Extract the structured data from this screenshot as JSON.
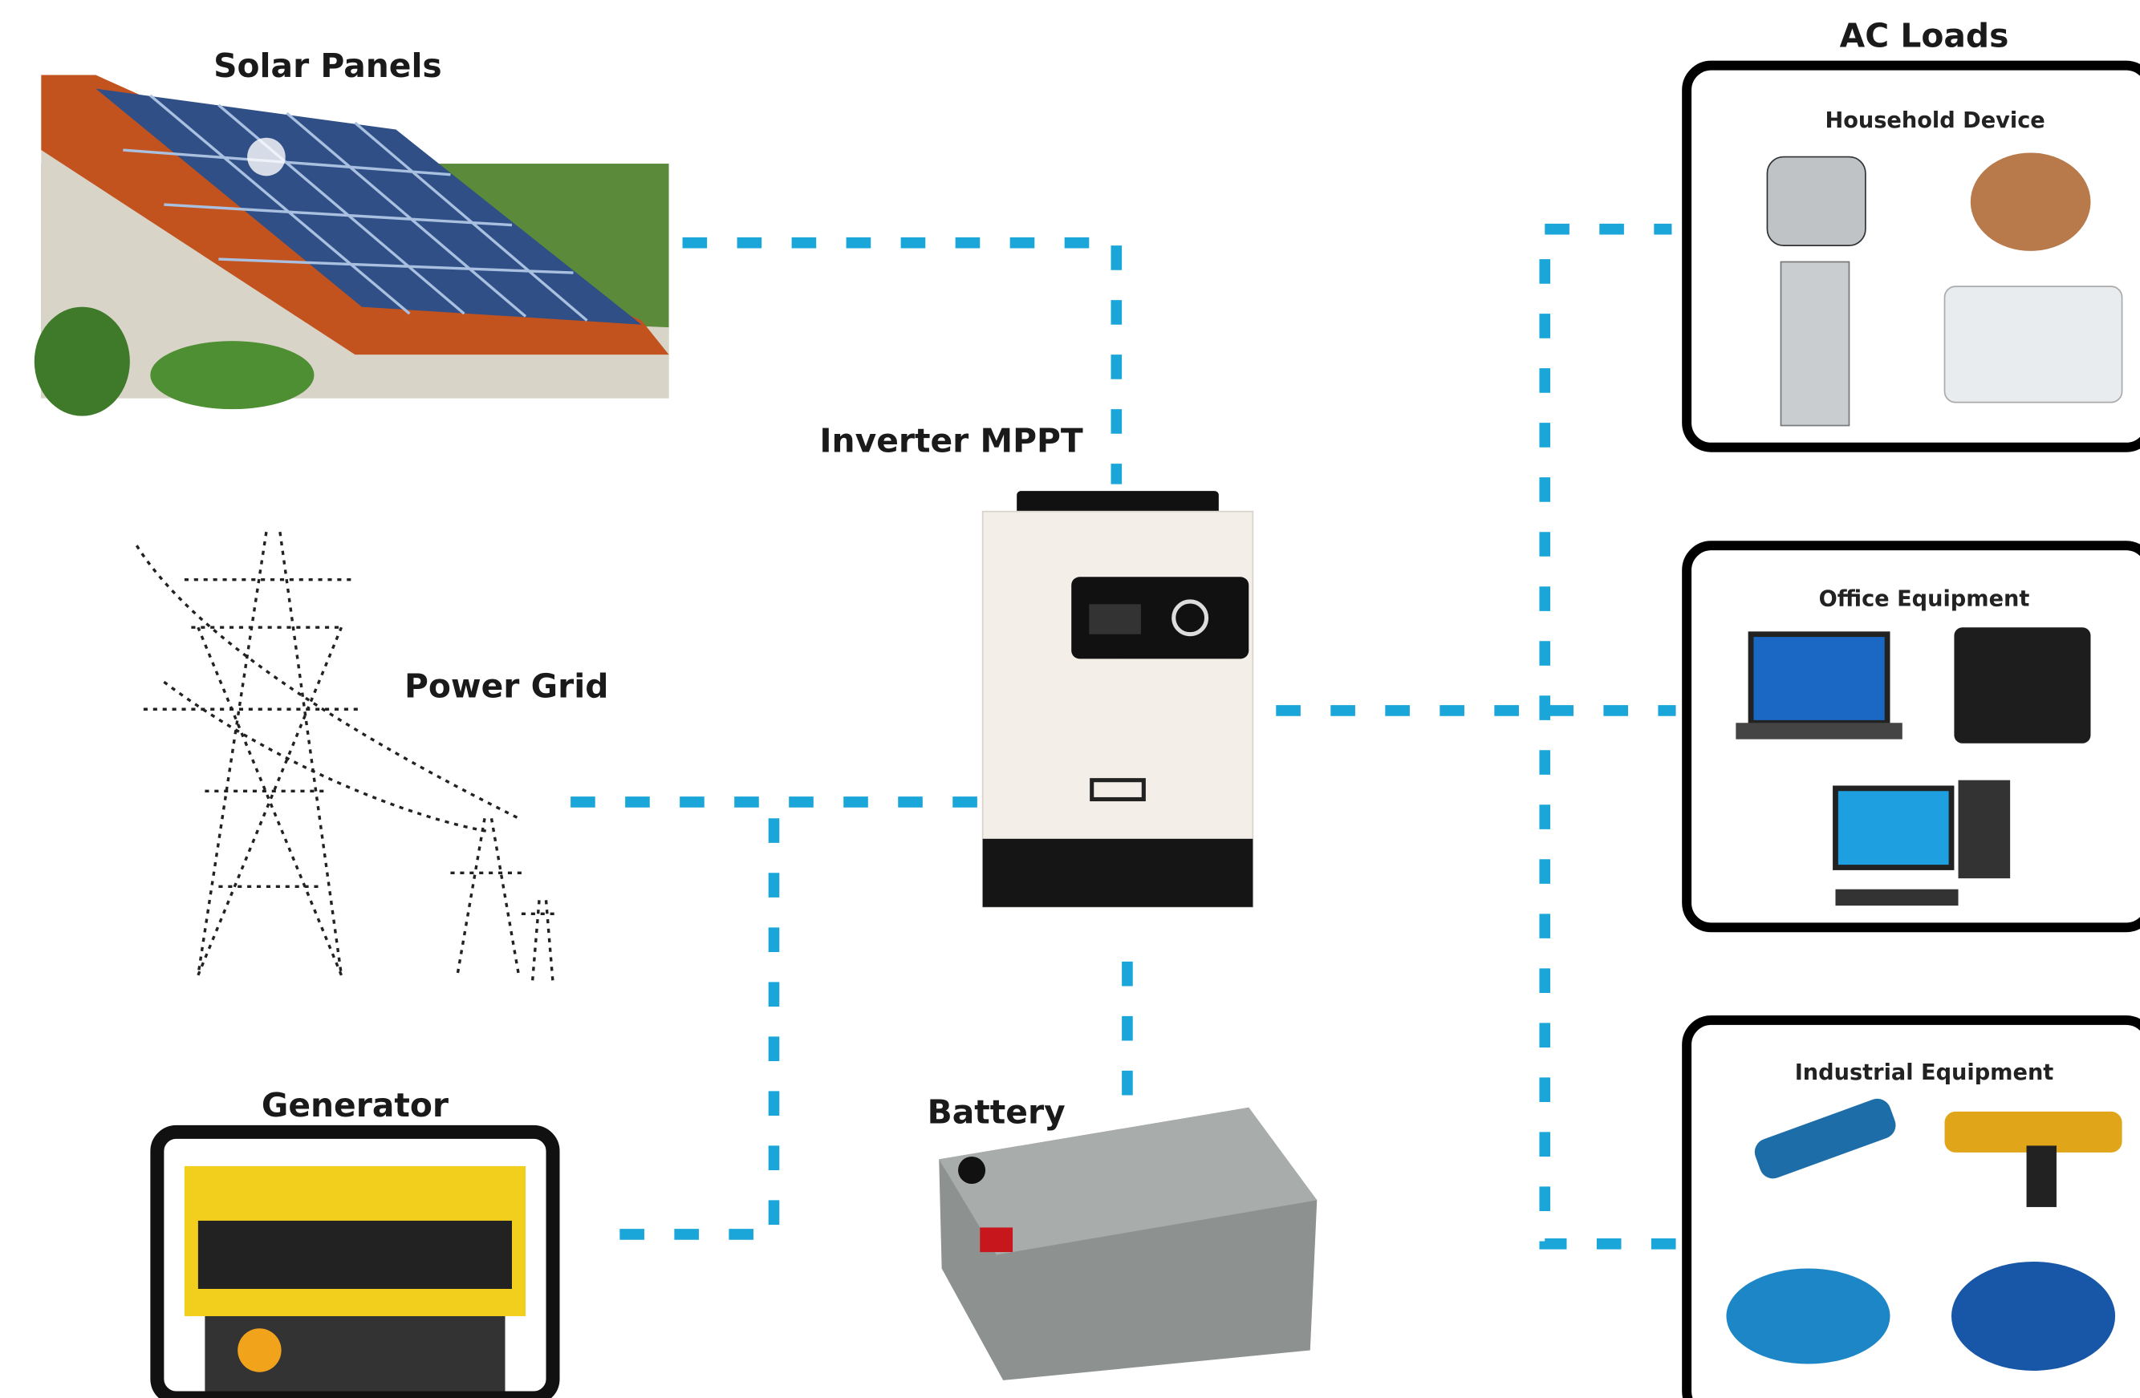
{
  "title": "AC Loads",
  "nodes": [
    {
      "label": "Solar Panels"
    },
    {
      "label": "Power Grid"
    },
    {
      "label": "Generator"
    },
    {
      "label": "Battery"
    },
    {
      "label": "Inverter MPPT"
    }
  ],
  "load_groups": [
    {
      "label": "Household Device"
    },
    {
      "label": "Office Equipment"
    },
    {
      "label": "Industrial Equipment"
    }
  ]
}
